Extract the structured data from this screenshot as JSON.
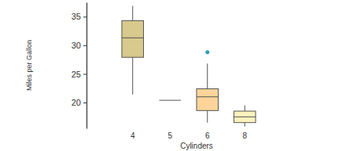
{
  "chart_data": {
    "type": "box",
    "x_label": "Cylinders",
    "y_label": "Miles per Gallon",
    "categories": [
      "4",
      "5",
      "6",
      "8"
    ],
    "min": [
      21.4,
      20.4,
      16.5,
      15.8
    ],
    "q1": [
      27.9,
      20.4,
      18.6,
      16.5
    ],
    "median": [
      31.3,
      20.4,
      21.0,
      17.5
    ],
    "q3": [
      34.3,
      20.4,
      22.4,
      18.5
    ],
    "max": [
      36.9,
      20.4,
      26.8,
      19.5
    ],
    "outliers": [
      [],
      [],
      [
        28.8
      ],
      []
    ],
    "colors": [
      "#d8c98c",
      "#e0cf99",
      "#fdd49a",
      "#fdf2bc"
    ],
    "ylim": [
      15.5,
      37.5
    ],
    "yticks": [
      20,
      25,
      30,
      35
    ],
    "grid": false
  }
}
